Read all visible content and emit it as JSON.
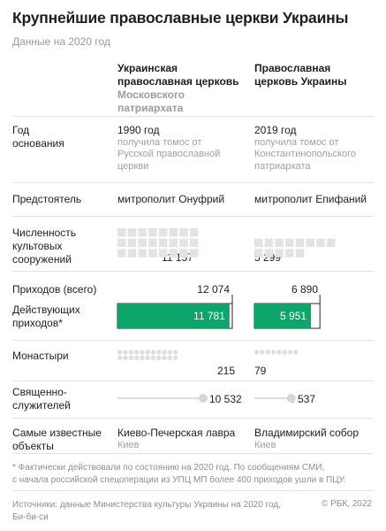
{
  "title": "Крупнейшие православные церкви Украины",
  "subtitle": "Данные на 2020 год",
  "columns": {
    "upc_mp": {
      "name_line1": "Украинская",
      "name_line2": "православная церковь",
      "name_grey_line1": "Московского",
      "name_grey_line2": "патриархата"
    },
    "ocu": {
      "name_line1": "Православная",
      "name_line2": "церковь Украины"
    }
  },
  "rows": {
    "founded": {
      "label_line1": "Год",
      "label_line2": "основания",
      "upc_mp": {
        "value": "1990 год",
        "note1": "получила томос от",
        "note2": "Русской православной",
        "note3": "церкви"
      },
      "ocu": {
        "value": "2019 год",
        "note1": "получила томос от",
        "note2": "Константинопольского",
        "note3": "патриархата"
      }
    },
    "primate": {
      "label": "Предстоятель",
      "upc_mp": "митрополит Онуфрий",
      "ocu": "митрополит Епифаний"
    },
    "buildings": {
      "label_line1": "Численность",
      "label_line2": "культовых",
      "label_line3": "сооружений",
      "upc_mp": "11 157",
      "ocu": "5 299"
    },
    "parishes_total": {
      "label": "Приходов (всего)",
      "upc_mp": "12 074",
      "ocu": "6 890"
    },
    "parishes_active": {
      "label_line1": "Действующих",
      "label_line2": "приходов*",
      "upc_mp": "11 781",
      "ocu": "5 951"
    },
    "monasteries": {
      "label": "Монастыри",
      "upc_mp": "215",
      "ocu": "79"
    },
    "clergy": {
      "label_line1": "Священно-",
      "label_line2": "служителей",
      "upc_mp": "10 532",
      "ocu": "4 537"
    },
    "famous": {
      "label_line1": "Самые известные",
      "label_line2": "объекты",
      "upc_mp": {
        "name": "Киево-Печерская лавра",
        "city": "Киев"
      },
      "ocu": {
        "name": "Владимирский собор",
        "city": "Киев"
      }
    }
  },
  "footnote_line1": "* Фактически действовали по состоянию на 2020 год. По сообщениям СМИ,",
  "footnote_line2": "с начала российской спецоперации из УПЦ МП более 400 приходов ушли в ПЦУ.",
  "sources_line1": "Источники: данные Министерства культуры Украины на 2020 год,",
  "sources_line2": "Би-би-си",
  "copyright": "© РБК, 2022",
  "colors": {
    "text": "#1e1e1e",
    "grey_text": "#9c9c9c",
    "accent_green": "#0ea56a",
    "icon_grey": "#e3e3e3",
    "dot_grey": "#dedede",
    "line_grey": "#d0d0d0",
    "knob_grey": "#d6d6d6"
  },
  "chart_data": {
    "type": "table",
    "columns": [
      "Украинская православная церковь Московского патриархата",
      "Православная церковь Украины"
    ],
    "series": [
      {
        "name": "Численность культовых сооружений",
        "values": [
          11157,
          5299
        ]
      },
      {
        "name": "Приходов (всего)",
        "values": [
          12074,
          6890
        ]
      },
      {
        "name": "Действующих приходов*",
        "values": [
          11781,
          5951
        ]
      },
      {
        "name": "Монастыри",
        "values": [
          215,
          79
        ]
      },
      {
        "name": "Священнослужителей",
        "values": [
          10532,
          4537
        ]
      }
    ],
    "buildings_per_icon": 400,
    "monasteries_per_dot": 10
  }
}
